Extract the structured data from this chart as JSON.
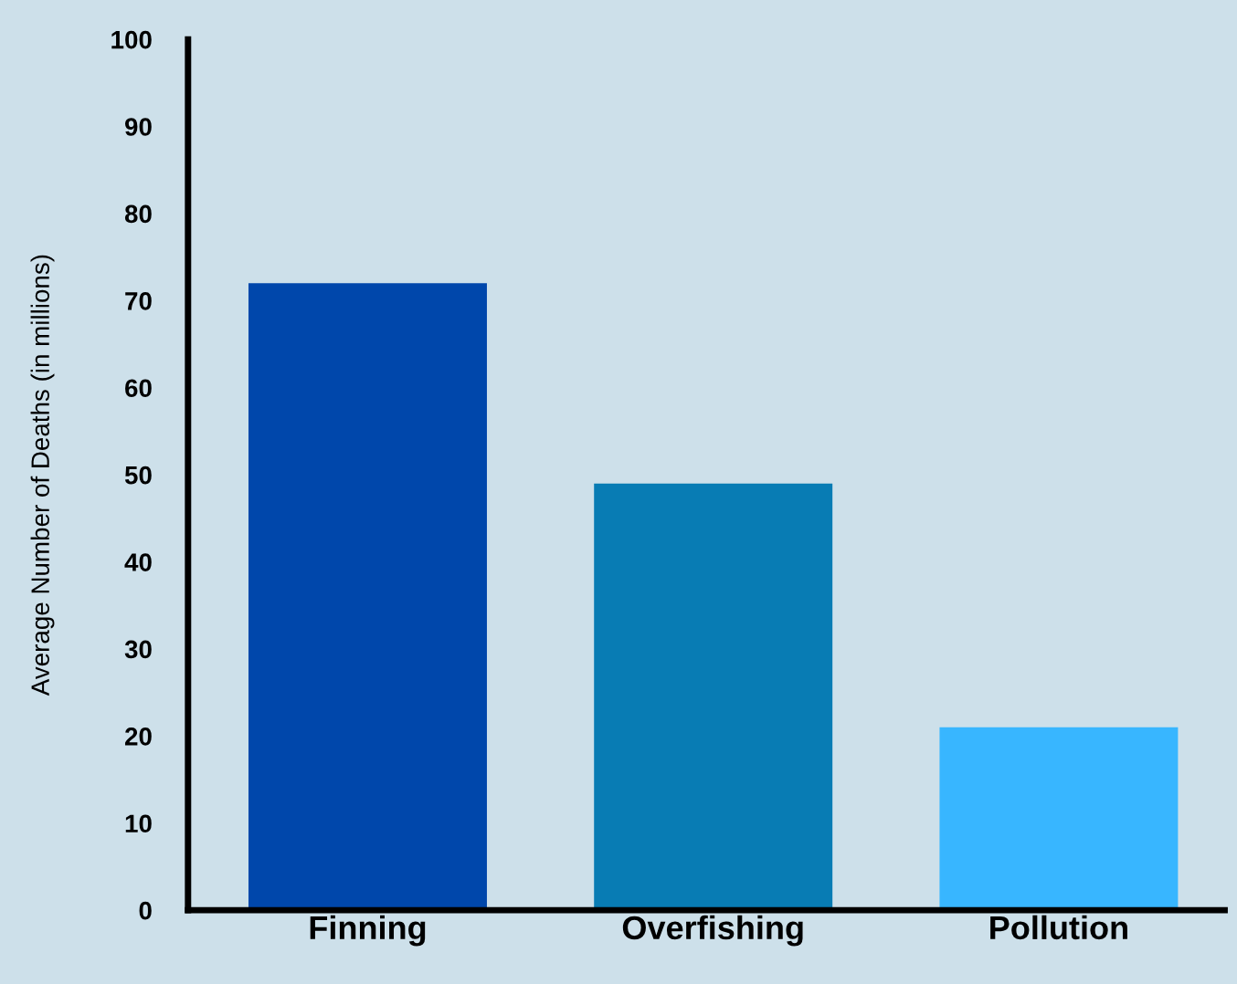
{
  "chart_data": {
    "type": "bar",
    "ylabel": "Average Number of Deaths (in millions)",
    "categories": [
      "Finning",
      "Overfishing",
      "Pollution"
    ],
    "values": [
      72,
      49,
      21
    ],
    "colors": [
      "#0047ab",
      "#087cb4",
      "#38b6ff"
    ],
    "ylim": [
      0,
      100
    ],
    "yticks": [
      0,
      10,
      20,
      30,
      40,
      50,
      60,
      70,
      80,
      90,
      100
    ],
    "grid": false,
    "legend": false
  }
}
